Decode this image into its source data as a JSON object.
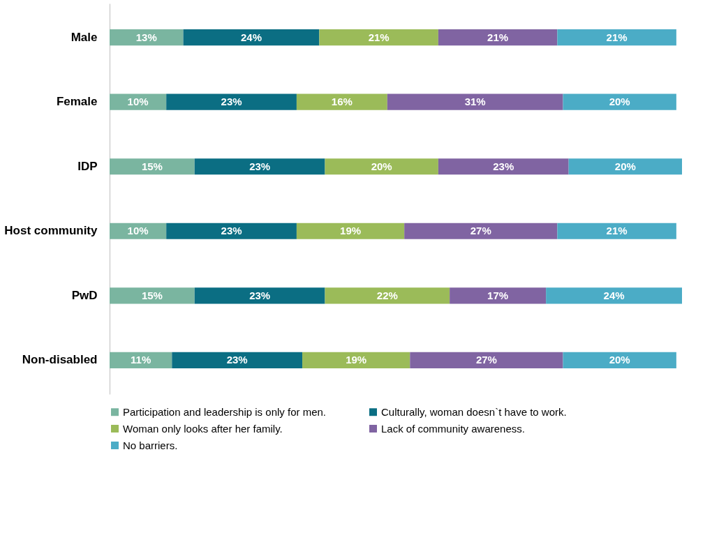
{
  "chart_data": {
    "type": "bar",
    "orientation": "horizontal",
    "stacked": true,
    "legend": "bottom",
    "grid": false,
    "categories": [
      "Male",
      "Female",
      "IDP",
      "Host community",
      "PwD",
      "Non-disabled"
    ],
    "series": [
      {
        "name": "Participation and leadership is only for men.",
        "color": "#7ab5a0",
        "values": [
          13,
          10,
          15,
          10,
          15,
          11
        ],
        "value_labels": [
          "13%",
          "10%",
          "15%",
          "10%",
          "15%",
          "11%"
        ]
      },
      {
        "name": "Culturally, woman doesn`t have to work.",
        "color": "#0b6e83",
        "values": [
          24,
          23,
          23,
          23,
          23,
          23
        ],
        "value_labels": [
          "24%",
          "23%",
          "23%",
          "23%",
          "23%",
          "23%"
        ]
      },
      {
        "name": "Woman only looks after her family.",
        "color": "#9bbb59",
        "values": [
          21,
          16,
          20,
          19,
          22,
          19
        ],
        "value_labels": [
          "21%",
          "16%",
          "20%",
          "19%",
          "22%",
          "19%"
        ]
      },
      {
        "name": "Lack of community awareness.",
        "color": "#8064a2",
        "values": [
          21,
          31,
          23,
          27,
          17,
          27
        ],
        "value_labels": [
          "21%",
          "31%",
          "23%",
          "27%",
          "17%",
          "27%"
        ]
      },
      {
        "name": "No barriers.",
        "color": "#4bacc6",
        "values": [
          21,
          20,
          20,
          21,
          24,
          20
        ],
        "value_labels": [
          "21%",
          "20%",
          "20%",
          "21%",
          "24%",
          "20%"
        ]
      }
    ]
  }
}
